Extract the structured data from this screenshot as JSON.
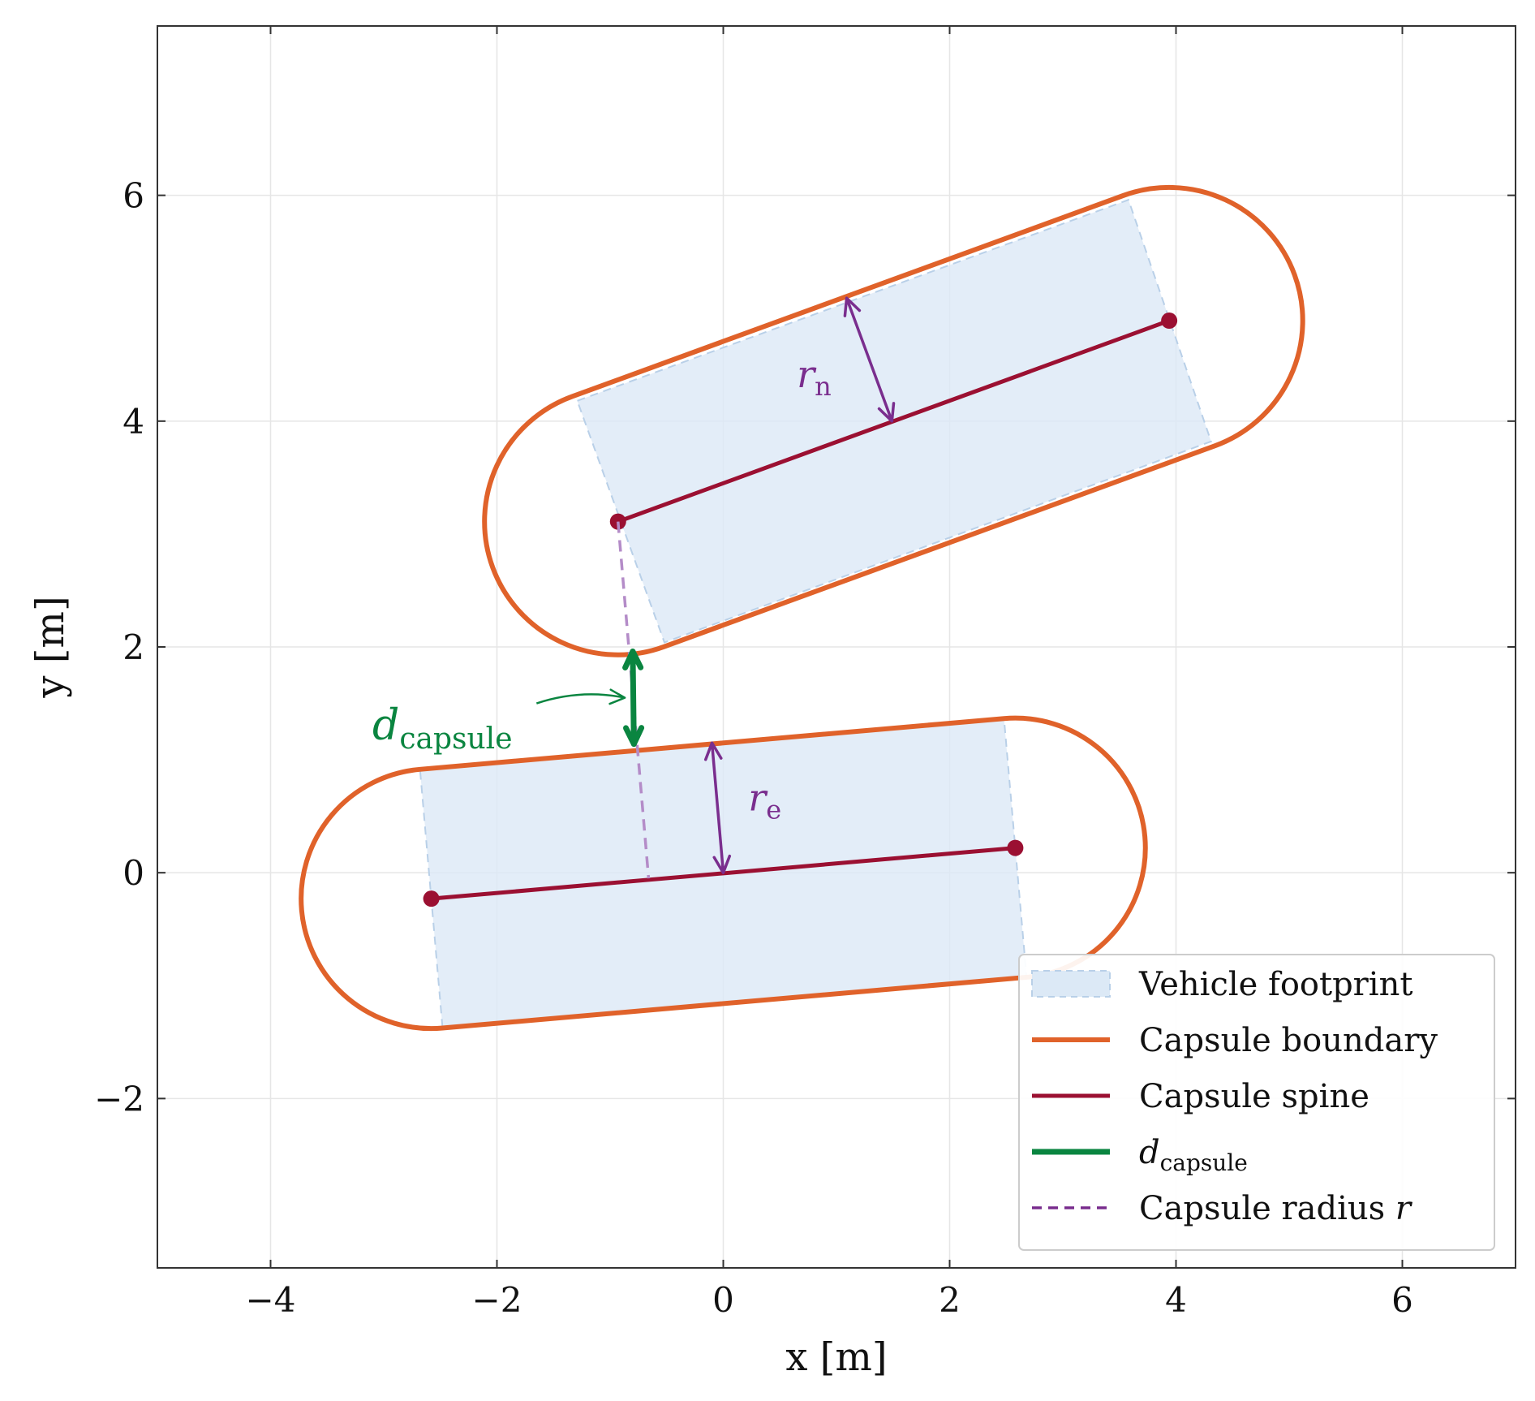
{
  "chart_data": {
    "type": "line",
    "title": "",
    "xlabel": "x [m]",
    "ylabel": "y [m]",
    "xlim": [
      -5,
      7
    ],
    "ylim": [
      -3.5,
      7.5
    ],
    "x_ticks": [
      {
        "v": -4,
        "label": "−4"
      },
      {
        "v": -2,
        "label": "−2"
      },
      {
        "v": 0,
        "label": "0"
      },
      {
        "v": 2,
        "label": "2"
      },
      {
        "v": 4,
        "label": "4"
      },
      {
        "v": 6,
        "label": "6"
      }
    ],
    "y_ticks": [
      {
        "v": -2,
        "label": "−2"
      },
      {
        "v": 0,
        "label": "0"
      },
      {
        "v": 2,
        "label": "2"
      },
      {
        "v": 4,
        "label": "4"
      },
      {
        "v": 6,
        "label": "6"
      }
    ],
    "grid": true,
    "legend_position": "bottom-right",
    "capsules": [
      {
        "id": "ego",
        "spine": [
          [
            -2.58,
            -0.23
          ],
          [
            2.58,
            0.22
          ]
        ],
        "radius": 1.15,
        "footprint": [
          [
            -2.68,
            0.92
          ],
          [
            2.48,
            1.37
          ],
          [
            2.68,
            -0.93
          ],
          [
            -2.48,
            -1.38
          ]
        ],
        "radius_label_base": "r",
        "radius_label_sub": "e",
        "radius_arrow": [
          [
            0,
            0
          ],
          [
            -0.1,
            1.15
          ]
        ],
        "radius_label_at": [
          0.22,
          0.55
        ]
      },
      {
        "id": "neighbor",
        "spine": [
          [
            -0.93,
            3.11
          ],
          [
            3.94,
            4.89
          ]
        ],
        "radius": 1.18,
        "footprint": [
          [
            -1.29,
            4.18
          ],
          [
            3.58,
            5.96
          ],
          [
            4.31,
            3.82
          ],
          [
            -0.52,
            2.04
          ]
        ],
        "radius_label_base": "r",
        "radius_label_sub": "n",
        "radius_arrow": [
          [
            1.49,
            4.0
          ],
          [
            1.09,
            5.09
          ]
        ],
        "radius_label_at": [
          0.65,
          4.3
        ]
      }
    ],
    "distance": {
      "from": [
        -0.79,
        1.14
      ],
      "to": [
        -0.8,
        1.96
      ],
      "label_base": "d",
      "label_sub": "capsule",
      "label_at": [
        -3.1,
        1.18
      ],
      "pointer_from": [
        -1.65,
        1.5
      ],
      "pointer_to": [
        -0.87,
        1.55
      ]
    },
    "radius_dashed": [
      [
        -0.93,
        3.11
      ],
      [
        -0.66,
        -0.05
      ]
    ],
    "legend": [
      {
        "key": "footprint",
        "label": "Vehicle footprint"
      },
      {
        "key": "boundary",
        "label": "Capsule boundary"
      },
      {
        "key": "spine",
        "label": "Capsule spine"
      },
      {
        "key": "distance",
        "label_base": "d",
        "label_sub": "capsule"
      },
      {
        "key": "radius",
        "label": "Capsule radius ",
        "label_italic": "r"
      }
    ],
    "colors": {
      "footprint_fill": "#dce9f6",
      "footprint_edge": "#b9d0e8",
      "boundary": "#e0622a",
      "spine": "#9b1032",
      "distance": "#0a8540",
      "radius": "#7a2e8e",
      "radius_dashed": "#b48cc8",
      "grid": "#e6e6e6",
      "axis": "#333333"
    }
  }
}
